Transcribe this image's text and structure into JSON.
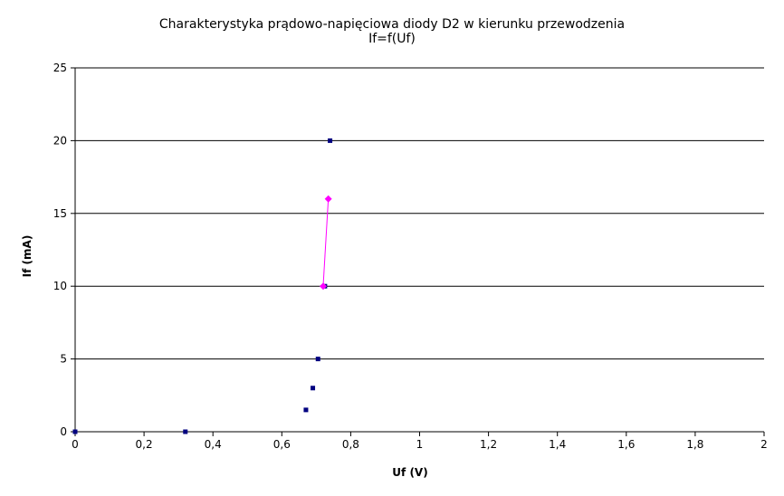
{
  "chart_data": {
    "type": "scatter",
    "title": "Charakterystyka prądowo-napięciowa diody D2 w kierunku przewodzenia",
    "subtitle": "If=f(Uf)",
    "xlabel": "Uf (V)",
    "ylabel": "If (mA)",
    "xlim": [
      0,
      2
    ],
    "ylim": [
      0,
      25
    ],
    "x_ticks": [
      "0",
      "0,2",
      "0,4",
      "0,6",
      "0,8",
      "1",
      "1,2",
      "1,4",
      "1,6",
      "1,8",
      "2"
    ],
    "y_ticks": [
      "0",
      "5",
      "10",
      "15",
      "20",
      "25"
    ],
    "grid": "horizontal",
    "series": [
      {
        "marker": "square",
        "line": false,
        "color": "#000080",
        "points": [
          {
            "x": 0,
            "y": 0
          },
          {
            "x": 0.32,
            "y": 0
          },
          {
            "x": 0.67,
            "y": 1.5
          },
          {
            "x": 0.69,
            "y": 3
          },
          {
            "x": 0.705,
            "y": 5
          },
          {
            "x": 0.725,
            "y": 10
          },
          {
            "x": 0.74,
            "y": 20
          }
        ]
      },
      {
        "marker": "diamond",
        "line": true,
        "color": "#ff00ff",
        "points": [
          {
            "x": 0.72,
            "y": 10
          },
          {
            "x": 0.735,
            "y": 16
          }
        ]
      }
    ]
  }
}
